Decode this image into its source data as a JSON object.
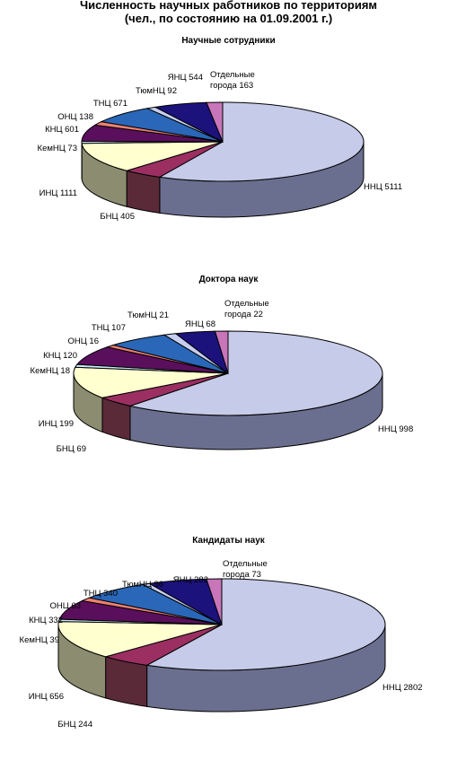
{
  "page": {
    "title_line1": "Численность научных работников по территориям",
    "title_line2": "(чел.,  по состоянию на 01.09.2001 г.)"
  },
  "chart_data": [
    {
      "type": "pie",
      "title": "Научные сотрудники",
      "categories": [
        "ННЦ",
        "БНЦ",
        "ИНЦ",
        "КемНЦ",
        "КНЦ",
        "ОНЦ",
        "ТНЦ",
        "ТюмНЦ",
        "ЯНЦ",
        "Отдельные города"
      ],
      "values": [
        5111,
        405,
        1111,
        73,
        601,
        138,
        671,
        92,
        544,
        163
      ],
      "colors": [
        "#c5cbe8",
        "#9c2f62",
        "#ffffd0",
        "#c8ecf8",
        "#5a0f5c",
        "#f08070",
        "#2a67b8",
        "#c7cff0",
        "#1c127c",
        "#c875b9"
      ]
    },
    {
      "type": "pie",
      "title": "Доктора наук",
      "categories": [
        "ННЦ",
        "БНЦ",
        "ИНЦ",
        "КемНЦ",
        "КНЦ",
        "ОНЦ",
        "ТНЦ",
        "ТюмНЦ",
        "ЯНЦ",
        "Отдельные города"
      ],
      "values": [
        998,
        69,
        199,
        18,
        120,
        16,
        107,
        21,
        68,
        22
      ],
      "colors": [
        "#c5cbe8",
        "#9c2f62",
        "#ffffd0",
        "#c8ecf8",
        "#5a0f5c",
        "#f08070",
        "#2a67b8",
        "#c7cff0",
        "#1c127c",
        "#c875b9"
      ]
    },
    {
      "type": "pie",
      "title": "Кандидаты наук",
      "categories": [
        "ННЦ",
        "БНЦ",
        "ИНЦ",
        "КемНЦ",
        "КНЦ",
        "ОНЦ",
        "ТНЦ",
        "ТюмНЦ",
        "ЯНЦ",
        "Отдельные города"
      ],
      "values": [
        2802,
        244,
        656,
        39,
        332,
        63,
        340,
        36,
        282,
        73
      ],
      "colors": [
        "#c5cbe8",
        "#9c2f62",
        "#ffffd0",
        "#c8ecf8",
        "#5a0f5c",
        "#f08070",
        "#2a67b8",
        "#c7cff0",
        "#1c127c",
        "#c875b9"
      ]
    }
  ]
}
